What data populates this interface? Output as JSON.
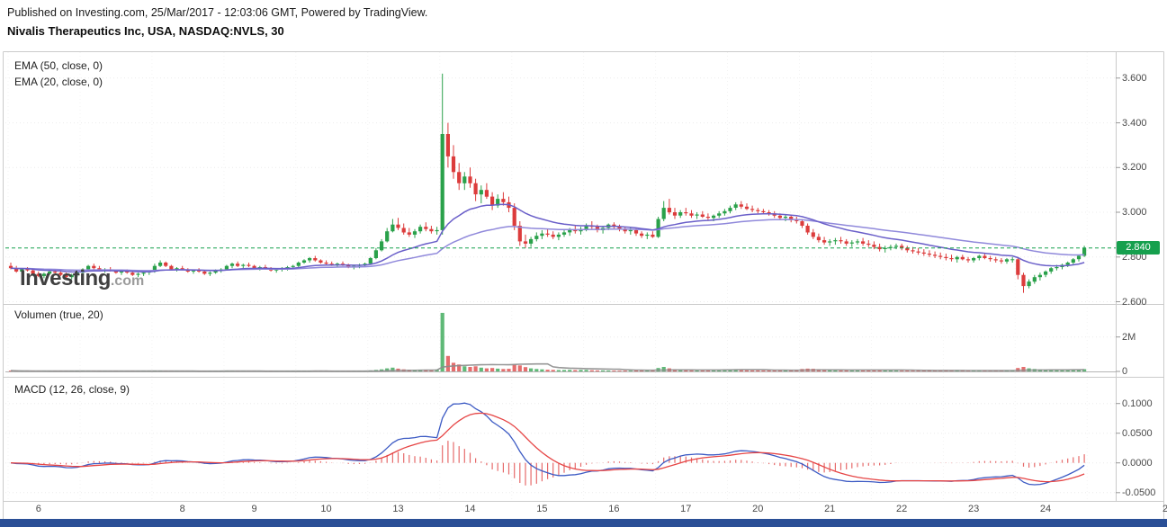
{
  "header": {
    "published_line": "Published on Investing.com, 25/Mar/2017 - 12:03:06 GMT, Powered by TradingView.",
    "instrument_line": "Nivalis Therapeutics Inc, USA, NASDAQ:NVLS, 30"
  },
  "watermark": {
    "brand": "Investing",
    "suffix": ".com"
  },
  "panels": {
    "price": {
      "legend_ema50": "EMA (50, close, 0)",
      "legend_ema20": "EMA (20, close, 0)",
      "last_price_label": "2.840",
      "axis_ticks": [
        {
          "label": "3.600",
          "value": 3.6
        },
        {
          "label": "3.400",
          "value": 3.4
        },
        {
          "label": "3.200",
          "value": 3.2
        },
        {
          "label": "3.000",
          "value": 3.0
        },
        {
          "label": "2.800",
          "value": 2.8
        },
        {
          "label": "2.600",
          "value": 2.6
        }
      ]
    },
    "volume": {
      "legend": "Volumen (true, 20)",
      "axis_ticks": [
        {
          "label": "2M",
          "value": 2000
        },
        {
          "label": "0",
          "value": 0
        }
      ]
    },
    "macd": {
      "legend": "MACD (12, 26, close, 9)",
      "axis_ticks": [
        {
          "label": "0.1000",
          "value": 0.1
        },
        {
          "label": "0.0500",
          "value": 0.05
        },
        {
          "label": "0.0000",
          "value": 0.0
        },
        {
          "label": "-0.0500",
          "value": -0.05
        }
      ]
    }
  },
  "colors": {
    "up": "#2AA14A",
    "down": "#DC3C3C",
    "ema20": "#6A5FC9",
    "ema50": "#9089DB",
    "macd": "#3D5BC4",
    "signal": "#E64545",
    "histogram": "#E66A6A",
    "volume_ma": "#8C8C8C",
    "last_price": "#16A04E",
    "grid": "#ECECEC",
    "day_grid": "#F3F3F3",
    "frame": "#CBCBCB",
    "axis_tick": "#999999",
    "volume_baseline": "#B5B5B5",
    "bottom_bar": "#2A4F96"
  },
  "chart_data": {
    "type": "candlestick",
    "title": "Nivalis Therapeutics Inc, USA, NASDAQ:NVLS, 30",
    "symbol": "NASDAQ:NVLS",
    "interval_minutes": 30,
    "legend_indicators": [
      "EMA (50, close, 0)",
      "EMA (20, close, 0)",
      "Volumen (true, 20)",
      "MACD (12, 26, close, 9)"
    ],
    "x_day_labels": [
      "6",
      "",
      "8",
      "9",
      "10",
      "13",
      "14",
      "15",
      "16",
      "17",
      "20",
      "21",
      "22",
      "23",
      "24"
    ],
    "x_overflow_label": "2",
    "candles_per_day": 13,
    "price_axis_range": [
      2.59,
      3.72
    ],
    "volume_unit": "thousands_of_shares",
    "volume_axis_max_k": 3500,
    "macd_axis_range": [
      -0.064,
      0.145
    ],
    "indicators": {
      "ema_fast": 20,
      "ema_slow": 50,
      "macd_fast": 12,
      "macd_slow": 26,
      "macd_signal": 9,
      "volume_ma": 20
    },
    "last_price": 2.84,
    "candles_format": [
      "open",
      "high",
      "low",
      "close",
      "volume_k"
    ],
    "candles": [
      [
        2.76,
        2.775,
        2.745,
        2.75,
        45
      ],
      [
        2.75,
        2.76,
        2.73,
        2.735,
        30
      ],
      [
        2.735,
        2.75,
        2.725,
        2.745,
        22
      ],
      [
        2.745,
        2.755,
        2.735,
        2.74,
        18
      ],
      [
        2.74,
        2.745,
        2.72,
        2.725,
        25
      ],
      [
        2.725,
        2.735,
        2.71,
        2.715,
        20
      ],
      [
        2.715,
        2.73,
        2.705,
        2.725,
        15
      ],
      [
        2.725,
        2.74,
        2.72,
        2.735,
        12
      ],
      [
        2.735,
        2.745,
        2.725,
        2.73,
        14
      ],
      [
        2.73,
        2.74,
        2.715,
        2.72,
        16
      ],
      [
        2.72,
        2.73,
        2.705,
        2.71,
        22
      ],
      [
        2.71,
        2.725,
        2.7,
        2.72,
        28
      ],
      [
        2.72,
        2.735,
        2.71,
        2.73,
        35
      ],
      [
        2.73,
        2.75,
        2.72,
        2.745,
        30
      ],
      [
        2.745,
        2.765,
        2.74,
        2.76,
        26
      ],
      [
        2.76,
        2.77,
        2.745,
        2.75,
        20
      ],
      [
        2.75,
        2.76,
        2.735,
        2.74,
        18
      ],
      [
        2.74,
        2.75,
        2.73,
        2.745,
        15
      ],
      [
        2.745,
        2.755,
        2.735,
        2.74,
        12
      ],
      [
        2.74,
        2.745,
        2.725,
        2.73,
        14
      ],
      [
        2.73,
        2.74,
        2.72,
        2.735,
        13
      ],
      [
        2.735,
        2.745,
        2.725,
        2.73,
        12
      ],
      [
        2.73,
        2.735,
        2.715,
        2.72,
        15
      ],
      [
        2.72,
        2.73,
        2.71,
        2.725,
        18
      ],
      [
        2.725,
        2.735,
        2.715,
        2.73,
        20
      ],
      [
        2.73,
        2.74,
        2.72,
        2.735,
        24
      ],
      [
        2.735,
        2.77,
        2.73,
        2.76,
        40
      ],
      [
        2.76,
        2.785,
        2.755,
        2.775,
        35
      ],
      [
        2.775,
        2.78,
        2.755,
        2.76,
        25
      ],
      [
        2.76,
        2.765,
        2.74,
        2.745,
        20
      ],
      [
        2.745,
        2.755,
        2.735,
        2.75,
        16
      ],
      [
        2.75,
        2.76,
        2.74,
        2.745,
        12
      ],
      [
        2.745,
        2.75,
        2.73,
        2.735,
        10
      ],
      [
        2.735,
        2.745,
        2.725,
        2.74,
        12
      ],
      [
        2.74,
        2.75,
        2.73,
        2.735,
        11
      ],
      [
        2.735,
        2.74,
        2.72,
        2.725,
        13
      ],
      [
        2.725,
        2.735,
        2.715,
        2.73,
        15
      ],
      [
        2.73,
        2.745,
        2.725,
        2.74,
        18
      ],
      [
        2.74,
        2.75,
        2.73,
        2.745,
        22
      ],
      [
        2.745,
        2.765,
        2.74,
        2.76,
        28
      ],
      [
        2.76,
        2.775,
        2.75,
        2.77,
        24
      ],
      [
        2.77,
        2.78,
        2.755,
        2.76,
        20
      ],
      [
        2.76,
        2.77,
        2.75,
        2.765,
        16
      ],
      [
        2.765,
        2.775,
        2.755,
        2.76,
        13
      ],
      [
        2.76,
        2.765,
        2.745,
        2.75,
        11
      ],
      [
        2.75,
        2.76,
        2.74,
        2.755,
        10
      ],
      [
        2.755,
        2.765,
        2.745,
        2.75,
        12
      ],
      [
        2.75,
        2.755,
        2.735,
        2.74,
        14
      ],
      [
        2.74,
        2.75,
        2.73,
        2.745,
        12
      ],
      [
        2.745,
        2.755,
        2.735,
        2.75,
        13
      ],
      [
        2.75,
        2.76,
        2.74,
        2.755,
        16
      ],
      [
        2.755,
        2.765,
        2.745,
        2.76,
        20
      ],
      [
        2.76,
        2.78,
        2.755,
        2.775,
        30
      ],
      [
        2.775,
        2.79,
        2.77,
        2.785,
        28
      ],
      [
        2.785,
        2.8,
        2.775,
        2.795,
        26
      ],
      [
        2.795,
        2.805,
        2.78,
        2.785,
        22
      ],
      [
        2.785,
        2.79,
        2.77,
        2.775,
        18
      ],
      [
        2.775,
        2.785,
        2.765,
        2.77,
        14
      ],
      [
        2.77,
        2.78,
        2.76,
        2.765,
        12
      ],
      [
        2.765,
        2.775,
        2.755,
        2.77,
        11
      ],
      [
        2.77,
        2.78,
        2.76,
        2.765,
        12
      ],
      [
        2.765,
        2.77,
        2.75,
        2.755,
        14
      ],
      [
        2.755,
        2.765,
        2.745,
        2.76,
        15
      ],
      [
        2.76,
        2.77,
        2.75,
        2.765,
        18
      ],
      [
        2.765,
        2.775,
        2.755,
        2.77,
        22
      ],
      [
        2.77,
        2.8,
        2.765,
        2.795,
        60
      ],
      [
        2.795,
        2.84,
        2.79,
        2.83,
        90
      ],
      [
        2.83,
        2.88,
        2.825,
        2.87,
        120
      ],
      [
        2.87,
        2.93,
        2.865,
        2.915,
        180
      ],
      [
        2.915,
        2.97,
        2.91,
        2.945,
        220
      ],
      [
        2.945,
        2.975,
        2.92,
        2.93,
        160
      ],
      [
        2.93,
        2.95,
        2.9,
        2.91,
        120
      ],
      [
        2.91,
        2.93,
        2.89,
        2.9,
        90
      ],
      [
        2.9,
        2.925,
        2.885,
        2.915,
        80
      ],
      [
        2.915,
        2.945,
        2.905,
        2.935,
        100
      ],
      [
        2.935,
        2.955,
        2.915,
        2.925,
        90
      ],
      [
        2.925,
        2.94,
        2.905,
        2.915,
        80
      ],
      [
        2.915,
        2.935,
        2.9,
        2.92,
        110
      ],
      [
        2.92,
        3.62,
        2.9,
        3.35,
        3400
      ],
      [
        3.35,
        3.4,
        3.2,
        3.25,
        900
      ],
      [
        3.25,
        3.3,
        3.15,
        3.18,
        500
      ],
      [
        3.18,
        3.22,
        3.1,
        3.13,
        400
      ],
      [
        3.13,
        3.18,
        3.1,
        3.16,
        300
      ],
      [
        3.16,
        3.2,
        3.11,
        3.13,
        260
      ],
      [
        3.13,
        3.15,
        3.05,
        3.08,
        300
      ],
      [
        3.08,
        3.12,
        3.04,
        3.1,
        220
      ],
      [
        3.1,
        3.13,
        3.06,
        3.07,
        180
      ],
      [
        3.07,
        3.09,
        3.01,
        3.03,
        200
      ],
      [
        3.03,
        3.08,
        3.02,
        3.06,
        160
      ],
      [
        3.06,
        3.09,
        3.03,
        3.045,
        140
      ],
      [
        3.045,
        3.07,
        3.0,
        3.02,
        150
      ],
      [
        3.02,
        3.04,
        2.92,
        2.94,
        400
      ],
      [
        2.94,
        2.96,
        2.85,
        2.87,
        350
      ],
      [
        2.87,
        2.9,
        2.84,
        2.86,
        250
      ],
      [
        2.86,
        2.89,
        2.845,
        2.88,
        180
      ],
      [
        2.88,
        2.91,
        2.87,
        2.895,
        140
      ],
      [
        2.895,
        2.92,
        2.88,
        2.905,
        120
      ],
      [
        2.905,
        2.925,
        2.89,
        2.9,
        100
      ],
      [
        2.9,
        2.915,
        2.88,
        2.89,
        90
      ],
      [
        2.89,
        2.91,
        2.875,
        2.9,
        80
      ],
      [
        2.9,
        2.92,
        2.89,
        2.91,
        85
      ],
      [
        2.91,
        2.93,
        2.895,
        2.92,
        90
      ],
      [
        2.92,
        2.94,
        2.905,
        2.915,
        80
      ],
      [
        2.915,
        2.935,
        2.9,
        2.925,
        90
      ],
      [
        2.925,
        2.95,
        2.915,
        2.94,
        90
      ],
      [
        2.94,
        2.96,
        2.925,
        2.935,
        70
      ],
      [
        2.935,
        2.945,
        2.91,
        2.92,
        60
      ],
      [
        2.92,
        2.94,
        2.905,
        2.93,
        55
      ],
      [
        2.93,
        2.95,
        2.92,
        2.945,
        50
      ],
      [
        2.945,
        2.955,
        2.925,
        2.935,
        45
      ],
      [
        2.935,
        2.945,
        2.915,
        2.925,
        40
      ],
      [
        2.925,
        2.935,
        2.905,
        2.915,
        45
      ],
      [
        2.915,
        2.93,
        2.9,
        2.92,
        40
      ],
      [
        2.92,
        2.93,
        2.895,
        2.905,
        50
      ],
      [
        2.905,
        2.915,
        2.885,
        2.895,
        60
      ],
      [
        2.895,
        2.91,
        2.88,
        2.9,
        55
      ],
      [
        2.9,
        2.915,
        2.885,
        2.89,
        60
      ],
      [
        2.89,
        2.98,
        2.885,
        2.97,
        200
      ],
      [
        2.97,
        3.05,
        2.96,
        3.02,
        260
      ],
      [
        3.02,
        3.06,
        2.99,
        3.0,
        180
      ],
      [
        3.0,
        3.02,
        2.97,
        2.985,
        120
      ],
      [
        2.985,
        3.01,
        2.975,
        3.0,
        100
      ],
      [
        3.0,
        3.02,
        2.985,
        2.995,
        80
      ],
      [
        2.995,
        3.01,
        2.975,
        2.985,
        70
      ],
      [
        2.985,
        3.0,
        2.97,
        2.99,
        60
      ],
      [
        2.99,
        3.005,
        2.975,
        2.98,
        55
      ],
      [
        2.98,
        2.995,
        2.965,
        2.975,
        60
      ],
      [
        2.975,
        2.99,
        2.96,
        2.985,
        65
      ],
      [
        2.985,
        3.005,
        2.975,
        2.995,
        70
      ],
      [
        2.995,
        3.015,
        2.985,
        3.005,
        80
      ],
      [
        3.005,
        3.03,
        2.995,
        3.02,
        110
      ],
      [
        3.02,
        3.045,
        3.01,
        3.035,
        120
      ],
      [
        3.035,
        3.05,
        3.015,
        3.025,
        90
      ],
      [
        3.025,
        3.04,
        3.01,
        3.015,
        70
      ],
      [
        3.015,
        3.03,
        3.0,
        3.01,
        60
      ],
      [
        3.01,
        3.02,
        2.995,
        3.005,
        55
      ],
      [
        3.005,
        3.015,
        2.99,
        3.0,
        50
      ],
      [
        3.0,
        3.01,
        2.985,
        2.995,
        55
      ],
      [
        2.995,
        3.005,
        2.975,
        2.985,
        60
      ],
      [
        2.985,
        2.995,
        2.965,
        2.975,
        65
      ],
      [
        2.975,
        2.99,
        2.96,
        2.98,
        60
      ],
      [
        2.98,
        2.99,
        2.955,
        2.965,
        70
      ],
      [
        2.965,
        2.98,
        2.95,
        2.96,
        75
      ],
      [
        2.96,
        2.97,
        2.93,
        2.94,
        140
      ],
      [
        2.94,
        2.95,
        2.9,
        2.91,
        160
      ],
      [
        2.91,
        2.925,
        2.88,
        2.89,
        150
      ],
      [
        2.89,
        2.905,
        2.865,
        2.875,
        130
      ],
      [
        2.875,
        2.89,
        2.855,
        2.865,
        110
      ],
      [
        2.865,
        2.88,
        2.85,
        2.87,
        90
      ],
      [
        2.87,
        2.885,
        2.855,
        2.875,
        70
      ],
      [
        2.875,
        2.89,
        2.86,
        2.87,
        60
      ],
      [
        2.87,
        2.88,
        2.85,
        2.86,
        65
      ],
      [
        2.86,
        2.875,
        2.845,
        2.865,
        60
      ],
      [
        2.865,
        2.88,
        2.855,
        2.87,
        55
      ],
      [
        2.87,
        2.885,
        2.85,
        2.86,
        60
      ],
      [
        2.86,
        2.875,
        2.845,
        2.855,
        65
      ],
      [
        2.855,
        2.87,
        2.835,
        2.845,
        80
      ],
      [
        2.845,
        2.86,
        2.825,
        2.835,
        70
      ],
      [
        2.835,
        2.85,
        2.82,
        2.84,
        60
      ],
      [
        2.84,
        2.855,
        2.83,
        2.845,
        50
      ],
      [
        2.845,
        2.86,
        2.835,
        2.85,
        45
      ],
      [
        2.85,
        2.86,
        2.83,
        2.84,
        40
      ],
      [
        2.84,
        2.85,
        2.82,
        2.83,
        45
      ],
      [
        2.83,
        2.845,
        2.815,
        2.825,
        40
      ],
      [
        2.825,
        2.84,
        2.81,
        2.82,
        45
      ],
      [
        2.82,
        2.835,
        2.805,
        2.815,
        50
      ],
      [
        2.815,
        2.83,
        2.8,
        2.81,
        55
      ],
      [
        2.81,
        2.825,
        2.795,
        2.805,
        50
      ],
      [
        2.805,
        2.82,
        2.79,
        2.8,
        55
      ],
      [
        2.8,
        2.815,
        2.785,
        2.795,
        70
      ],
      [
        2.795,
        2.81,
        2.78,
        2.79,
        60
      ],
      [
        2.79,
        2.805,
        2.775,
        2.8,
        55
      ],
      [
        2.8,
        2.81,
        2.785,
        2.79,
        50
      ],
      [
        2.79,
        2.8,
        2.775,
        2.785,
        45
      ],
      [
        2.785,
        2.8,
        2.775,
        2.795,
        40
      ],
      [
        2.795,
        2.81,
        2.785,
        2.805,
        40
      ],
      [
        2.805,
        2.815,
        2.79,
        2.795,
        45
      ],
      [
        2.795,
        2.805,
        2.78,
        2.79,
        40
      ],
      [
        2.79,
        2.8,
        2.775,
        2.785,
        50
      ],
      [
        2.785,
        2.795,
        2.77,
        2.78,
        55
      ],
      [
        2.78,
        2.795,
        2.77,
        2.79,
        50
      ],
      [
        2.79,
        2.8,
        2.775,
        2.79,
        60
      ],
      [
        2.79,
        2.8,
        2.7,
        2.72,
        200
      ],
      [
        2.72,
        2.73,
        2.64,
        2.67,
        260
      ],
      [
        2.67,
        2.7,
        2.66,
        2.69,
        180
      ],
      [
        2.69,
        2.72,
        2.68,
        2.71,
        140
      ],
      [
        2.71,
        2.73,
        2.695,
        2.72,
        110
      ],
      [
        2.72,
        2.74,
        2.71,
        2.735,
        100
      ],
      [
        2.735,
        2.755,
        2.725,
        2.75,
        90
      ],
      [
        2.75,
        2.765,
        2.74,
        2.755,
        85
      ],
      [
        2.755,
        2.77,
        2.745,
        2.765,
        80
      ],
      [
        2.765,
        2.78,
        2.755,
        2.775,
        85
      ],
      [
        2.775,
        2.795,
        2.765,
        2.79,
        90
      ],
      [
        2.79,
        2.81,
        2.78,
        2.805,
        100
      ],
      [
        2.805,
        2.85,
        2.8,
        2.84,
        130
      ]
    ]
  }
}
